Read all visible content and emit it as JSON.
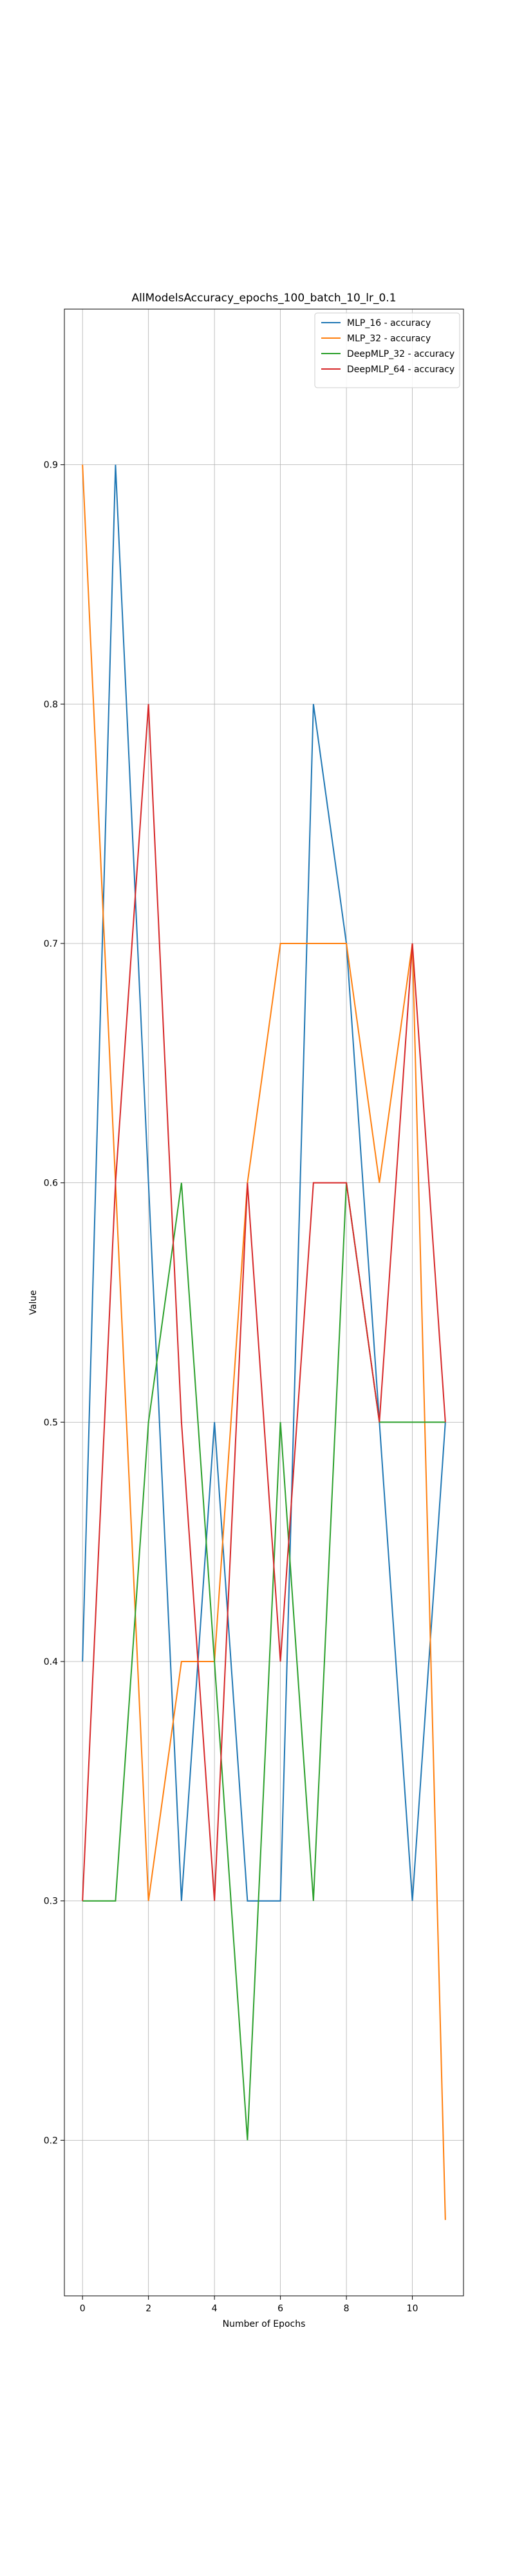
{
  "chart_data": {
    "type": "line",
    "title": "AllModelsAccuracy_epochs_100_batch_10_lr_0.1",
    "xlabel": "Number of Epochs",
    "ylabel": "Value",
    "x": [
      0,
      1,
      2,
      3,
      4,
      5,
      6,
      7,
      8,
      9,
      10,
      11
    ],
    "xticks": [
      0,
      2,
      4,
      6,
      8,
      10
    ],
    "yticks": [
      0.2,
      0.3,
      0.4,
      0.5,
      0.6,
      0.7,
      0.8,
      0.9
    ],
    "xlim": [
      -0.55,
      11.55
    ],
    "ylim": [
      0.135,
      0.965
    ],
    "grid": true,
    "legend_position": "top-right",
    "series": [
      {
        "name": "MLP_16 - accuracy",
        "color": "#1f77b4",
        "values": [
          0.4,
          0.9,
          0.6,
          0.3,
          0.5,
          0.3,
          0.3,
          0.8,
          0.7,
          0.5,
          0.3,
          0.5
        ]
      },
      {
        "name": "MLP_32 - accuracy",
        "color": "#ff7f0e",
        "values": [
          0.9,
          0.6,
          0.3,
          0.4,
          0.4,
          0.6,
          0.7,
          0.7,
          0.7,
          0.6,
          0.7,
          0.1667
        ]
      },
      {
        "name": "DeepMLP_32 - accuracy",
        "color": "#2ca02c",
        "values": [
          0.3,
          0.3,
          0.5,
          0.6,
          0.4,
          0.2,
          0.5,
          0.3,
          0.6,
          0.5,
          0.5,
          0.5
        ]
      },
      {
        "name": "DeepMLP_64 - accuracy",
        "color": "#d62728",
        "values": [
          0.3,
          0.6,
          0.8,
          0.5,
          0.3,
          0.6,
          0.4,
          0.6,
          0.6,
          0.5,
          0.7,
          0.5
        ]
      }
    ]
  }
}
